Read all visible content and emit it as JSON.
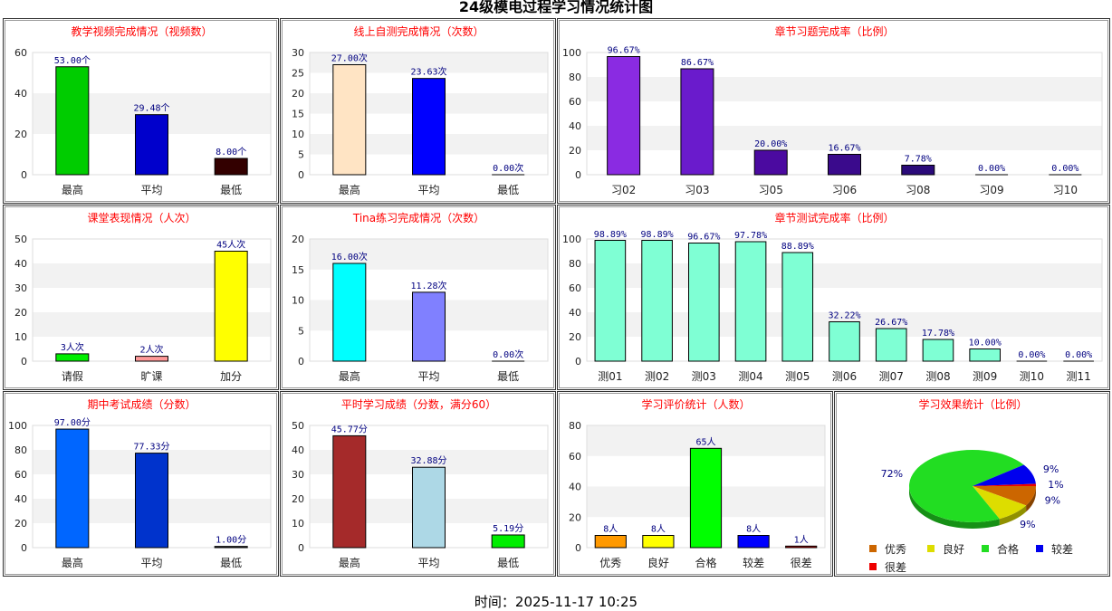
{
  "page_title": "24级模电过程学习情况统计图",
  "timestamp": "时间：2025-11-17 10:25",
  "chart_data": [
    {
      "id": "video",
      "type": "bar",
      "title": "教学视频完成情况（视频数）",
      "categories": [
        "最高",
        "平均",
        "最低"
      ],
      "values": [
        53,
        29.48,
        8
      ],
      "value_labels": [
        "53.00个",
        "29.48个",
        "8.00个"
      ],
      "colors": [
        "#00cc00",
        "#0000cc",
        "#330000"
      ],
      "ylim": [
        0,
        60
      ],
      "yticks": [
        0,
        20,
        40,
        60
      ]
    },
    {
      "id": "selftest",
      "type": "bar",
      "title": "线上自测完成情况（次数）",
      "categories": [
        "最高",
        "平均",
        "最低"
      ],
      "values": [
        27,
        23.63,
        0
      ],
      "value_labels": [
        "27.00次",
        "23.63次",
        "0.00次"
      ],
      "colors": [
        "#ffe4c4",
        "#0000ff",
        "#999999"
      ],
      "ylim": [
        0,
        30
      ],
      "yticks": [
        0,
        5,
        10,
        15,
        20,
        25,
        30
      ]
    },
    {
      "id": "chapter_ex",
      "type": "bar",
      "title": "章节习题完成率（比例）",
      "categories": [
        "习02",
        "习03",
        "习05",
        "习06",
        "习08",
        "习09",
        "习10"
      ],
      "values": [
        96.67,
        86.67,
        20,
        16.67,
        7.78,
        0,
        0
      ],
      "value_labels": [
        "96.67%",
        "86.67%",
        "20.00%",
        "16.67%",
        "7.78%",
        "0.00%",
        "0.00%"
      ],
      "colors": [
        "#8a2be2",
        "#6a1bcc",
        "#4b0aa0",
        "#3a0a8c",
        "#2a0a7a",
        "#2a0a7a",
        "#2a0a7a"
      ],
      "ylim": [
        0,
        100
      ],
      "yticks": [
        0,
        20,
        40,
        60,
        80,
        100
      ]
    },
    {
      "id": "classroom",
      "type": "bar",
      "title": "课堂表现情况（人次）",
      "categories": [
        "请假",
        "旷课",
        "加分"
      ],
      "values": [
        3,
        2,
        45
      ],
      "value_labels": [
        "3人次",
        "2人次",
        "45人次"
      ],
      "colors": [
        "#00ee00",
        "#ff9999",
        "#ffff00"
      ],
      "ylim": [
        0,
        50
      ],
      "yticks": [
        0,
        10,
        20,
        30,
        40,
        50
      ]
    },
    {
      "id": "tina",
      "type": "bar",
      "title": "Tina练习完成情况（次数）",
      "categories": [
        "最高",
        "平均",
        "最低"
      ],
      "values": [
        16,
        11.28,
        0
      ],
      "value_labels": [
        "16.00次",
        "11.28次",
        "0.00次"
      ],
      "colors": [
        "#00ffff",
        "#8080ff",
        "#999999"
      ],
      "ylim": [
        0,
        20
      ],
      "yticks": [
        0,
        5,
        10,
        15,
        20
      ]
    },
    {
      "id": "chapter_test",
      "type": "bar",
      "title": "章节测试完成率（比例）",
      "categories": [
        "测01",
        "测02",
        "测03",
        "测04",
        "测05",
        "测06",
        "测07",
        "测08",
        "测09",
        "测10",
        "测11"
      ],
      "values": [
        98.89,
        98.89,
        96.67,
        97.78,
        88.89,
        32.22,
        26.67,
        17.78,
        10,
        0,
        0
      ],
      "value_labels": [
        "98.89%",
        "98.89%",
        "96.67%",
        "97.78%",
        "88.89%",
        "32.22%",
        "26.67%",
        "17.78%",
        "10.00%",
        "0.00%",
        "0.00%"
      ],
      "colors": [
        "#7fffd4",
        "#7fffd4",
        "#7fffd4",
        "#7fffd4",
        "#7fffd4",
        "#7fffd4",
        "#7fffd4",
        "#7fffd4",
        "#7fffd4",
        "#7fffd4",
        "#7fffd4"
      ],
      "ylim": [
        0,
        100
      ],
      "yticks": [
        0,
        20,
        40,
        60,
        80,
        100
      ]
    },
    {
      "id": "midterm",
      "type": "bar",
      "title": "期中考试成绩（分数）",
      "categories": [
        "最高",
        "平均",
        "最低"
      ],
      "values": [
        97,
        77.33,
        1
      ],
      "value_labels": [
        "97.00分",
        "77.33分",
        "1.00分"
      ],
      "colors": [
        "#0066ff",
        "#0033cc",
        "#333333"
      ],
      "ylim": [
        0,
        100
      ],
      "yticks": [
        0,
        20,
        40,
        60,
        80,
        100
      ]
    },
    {
      "id": "regular",
      "type": "bar",
      "title": "平时学习成绩（分数，满分60）",
      "categories": [
        "最高",
        "平均",
        "最低"
      ],
      "values": [
        45.77,
        32.88,
        5.19
      ],
      "value_labels": [
        "45.77分",
        "32.88分",
        "5.19分"
      ],
      "colors": [
        "#a52a2a",
        "#add8e6",
        "#00ee00"
      ],
      "ylim": [
        0,
        50
      ],
      "yticks": [
        0,
        10,
        20,
        30,
        40,
        50
      ]
    },
    {
      "id": "evaluation",
      "type": "bar",
      "title": "学习评价统计（人数）",
      "categories": [
        "优秀",
        "良好",
        "合格",
        "较差",
        "很差"
      ],
      "values": [
        8,
        8,
        65,
        8,
        1
      ],
      "value_labels": [
        "8人",
        "8人",
        "65人",
        "8人",
        "1人"
      ],
      "colors": [
        "#ff9900",
        "#ffff00",
        "#00ff00",
        "#0000ff",
        "#cc0000"
      ],
      "ylim": [
        0,
        80
      ],
      "yticks": [
        0,
        20,
        40,
        60,
        80
      ]
    },
    {
      "id": "effect",
      "type": "pie",
      "title": "学习效果统计（比例）",
      "categories": [
        "优秀",
        "良好",
        "合格",
        "较差",
        "很差"
      ],
      "values": [
        9,
        9,
        72,
        9,
        1
      ],
      "value_labels": [
        "9%",
        "9%",
        "72%",
        "9%",
        "1%"
      ],
      "colors": [
        "#cc6600",
        "#dddd00",
        "#22dd22",
        "#0000ee",
        "#ee0000"
      ]
    }
  ]
}
